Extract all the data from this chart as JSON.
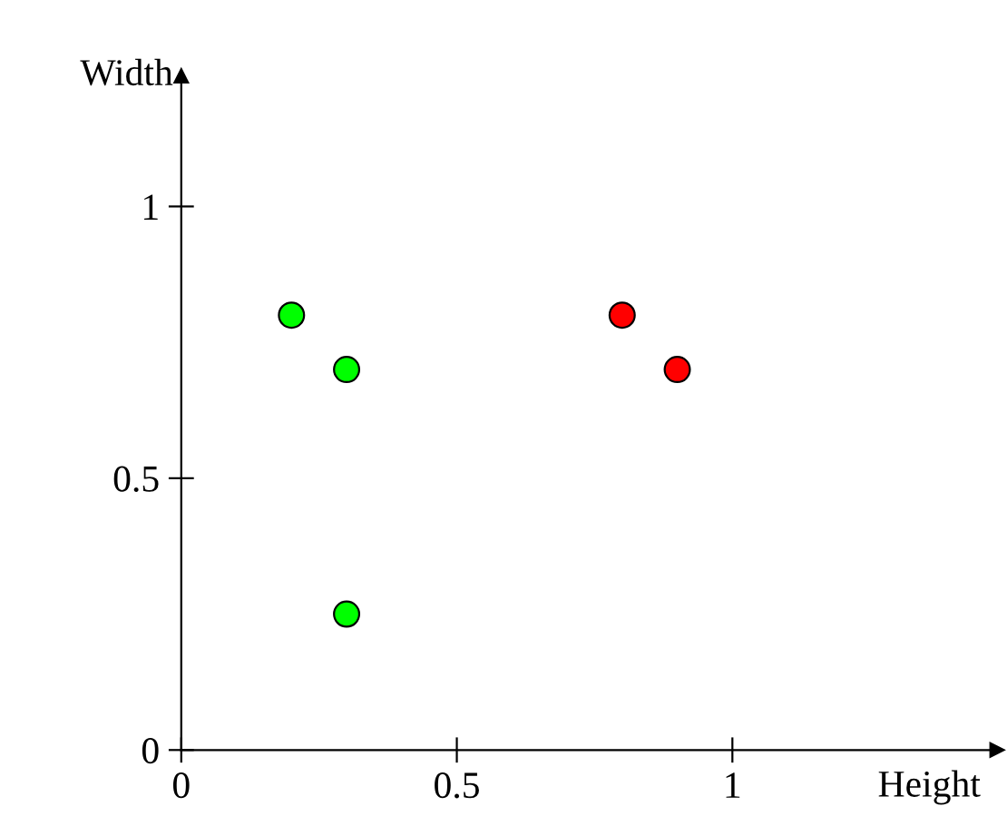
{
  "chart_data": {
    "type": "scatter",
    "xlabel": "Height",
    "ylabel": "Width",
    "xlim": [
      0,
      1.48
    ],
    "ylim": [
      0,
      1.24
    ],
    "xticks": [
      0,
      0.5,
      1
    ],
    "yticks": [
      0,
      0.5,
      1
    ],
    "grid": false,
    "marker": "circle",
    "series": [
      {
        "color": "#00ff00",
        "x": [
          0.2,
          0.3,
          0.3
        ],
        "values": [
          0.8,
          0.7,
          0.25
        ]
      },
      {
        "color": "#ff0000",
        "x": [
          0.8,
          0.9
        ],
        "values": [
          0.8,
          0.7
        ]
      }
    ]
  }
}
